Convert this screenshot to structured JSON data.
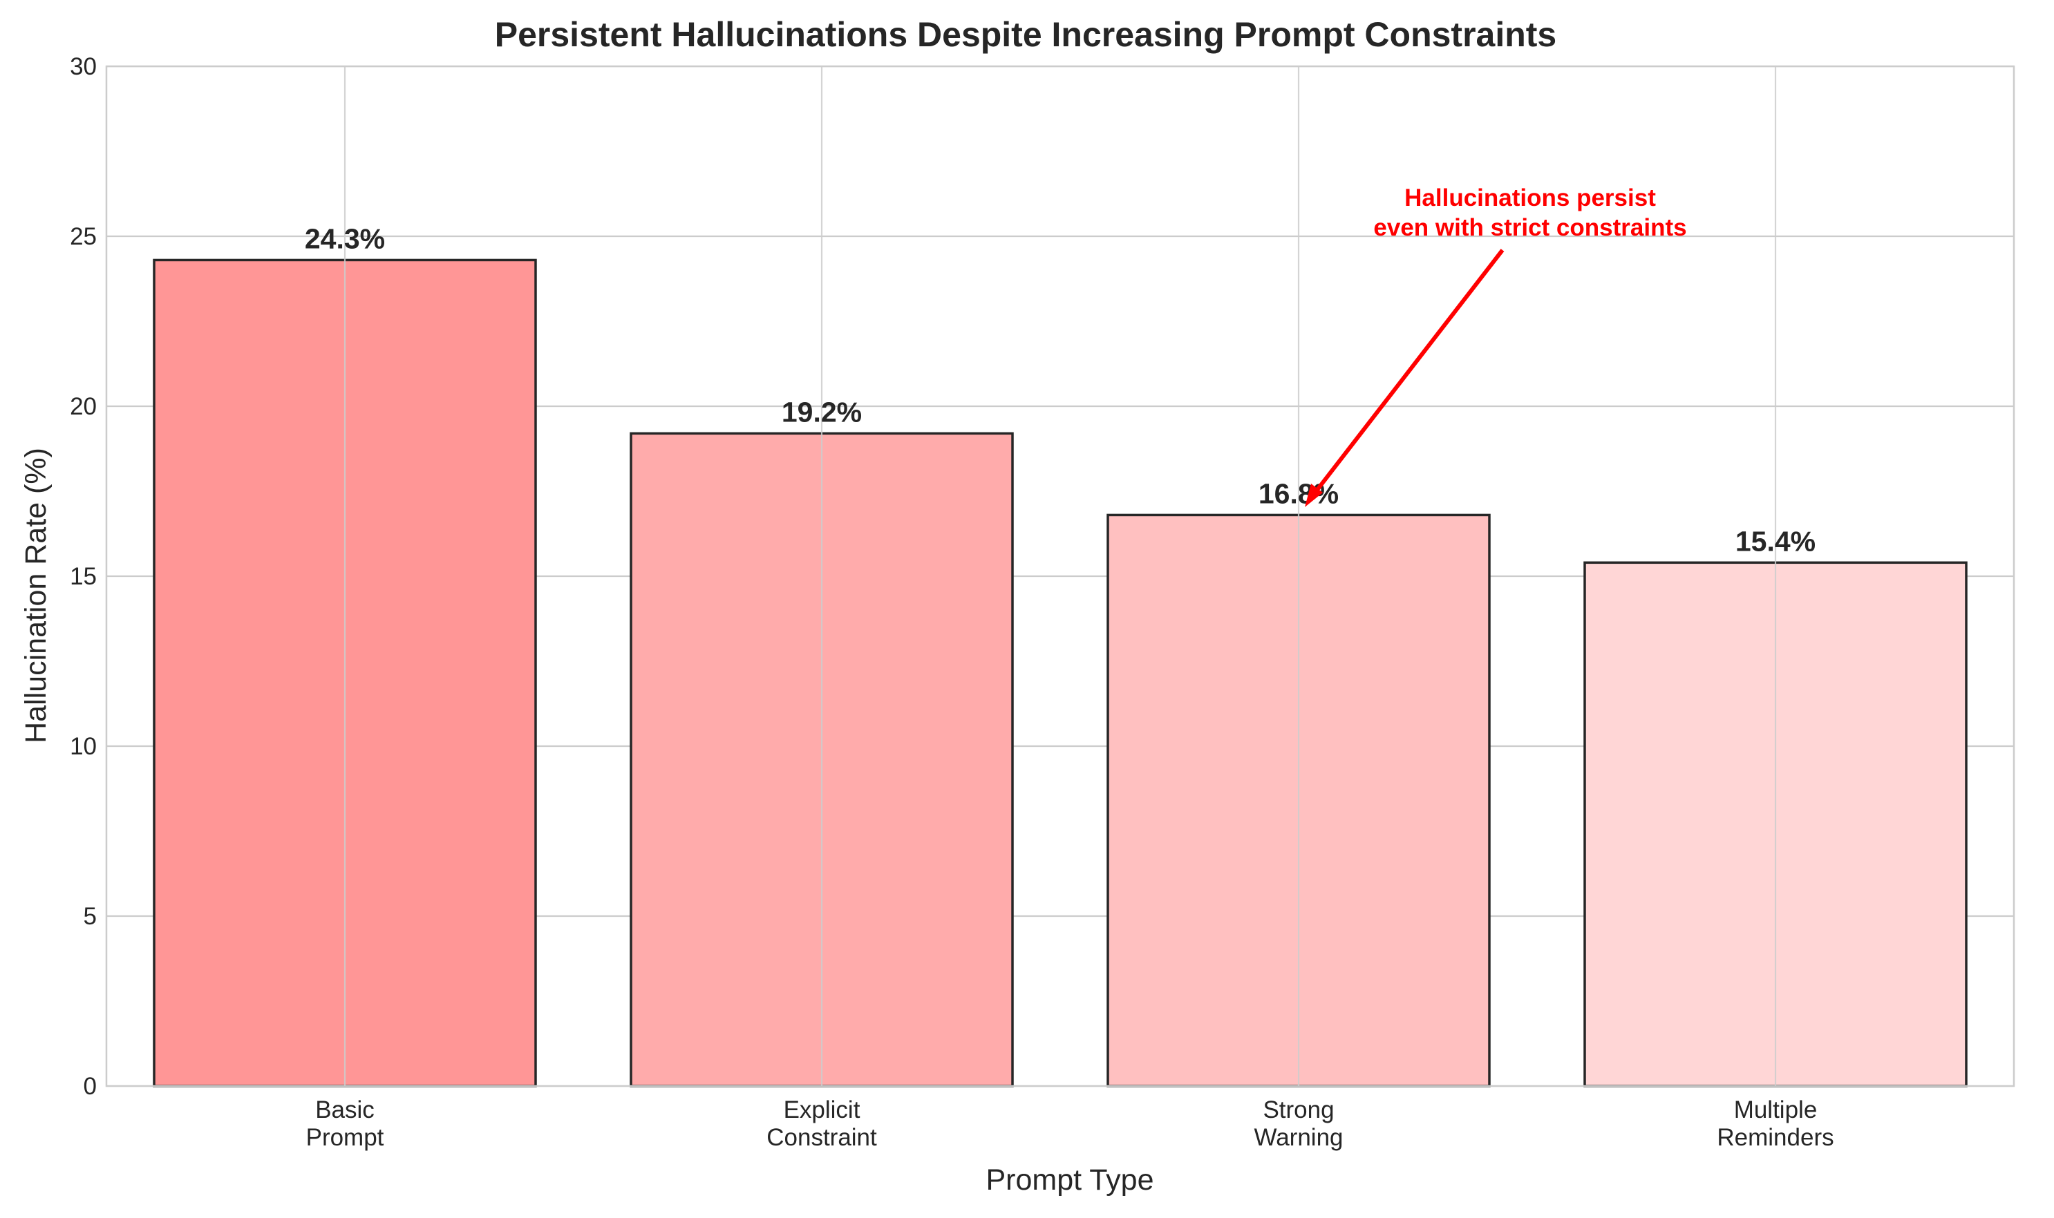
{
  "chart_data": {
    "type": "bar",
    "title": "Persistent Hallucinations Despite Increasing Prompt Constraints",
    "xlabel": "Prompt Type",
    "ylabel": "Hallucination Rate (%)",
    "ylim": [
      0,
      30
    ],
    "yticks": [
      "0",
      "5",
      "10",
      "15",
      "20",
      "25",
      "30"
    ],
    "categories": [
      [
        "Basic",
        "Prompt"
      ],
      [
        "Explicit",
        "Constraint"
      ],
      [
        "Strong",
        "Warning"
      ],
      [
        "Multiple",
        "Reminders"
      ]
    ],
    "values": [
      24.3,
      19.2,
      16.8,
      15.4
    ],
    "value_labels": [
      "24.3%",
      "19.2%",
      "16.8%",
      "15.4%"
    ],
    "bar_colors": [
      "#ff9696",
      "#ffabab",
      "#ffc0c0",
      "#ffd6d6"
    ],
    "bar_edge_color": "#262626",
    "grid": true,
    "annotation": {
      "lines": [
        "Hallucinations persist",
        "even with strict constraints"
      ],
      "color": "#ff0000",
      "target_category_index": 2
    }
  }
}
